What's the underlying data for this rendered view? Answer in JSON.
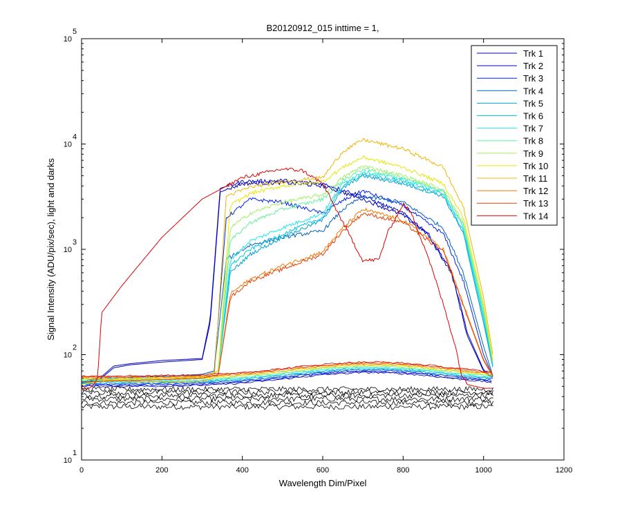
{
  "chart_data": {
    "type": "line",
    "title": "B20120912_015 inttime = 1,",
    "xlabel": "Wavelength Dim/Pixel",
    "ylabel": "Signal Intensity (ADU/pix/sec), light and darks",
    "xlim": [
      0,
      1200
    ],
    "ylim": [
      10,
      100000
    ],
    "yscale": "log",
    "x_ticks": [
      "0",
      "200",
      "400",
      "600",
      "800",
      "1000",
      "1200"
    ],
    "y_ticks": [
      {
        "base": "10",
        "exp": "1"
      },
      {
        "base": "10",
        "exp": "2"
      },
      {
        "base": "10",
        "exp": "3"
      },
      {
        "base": "10",
        "exp": "4"
      },
      {
        "base": "10",
        "exp": "5"
      }
    ],
    "grid": false,
    "legend_position": "top-right",
    "dark_color": "#000000",
    "series": [
      {
        "name": "Trk 1",
        "color": "#0000AA",
        "points": [
          [
            0,
            55
          ],
          [
            50,
            60
          ],
          [
            80,
            75
          ],
          [
            120,
            80
          ],
          [
            200,
            85
          ],
          [
            300,
            90
          ],
          [
            320,
            200
          ],
          [
            345,
            3500
          ],
          [
            400,
            4200
          ],
          [
            500,
            4300
          ],
          [
            600,
            4000
          ],
          [
            700,
            3000
          ],
          [
            800,
            2100
          ],
          [
            860,
            1400
          ],
          [
            920,
            600
          ],
          [
            960,
            150
          ],
          [
            1000,
            70
          ],
          [
            1020,
            60
          ]
        ],
        "dark_level": 50
      },
      {
        "name": "Trk 2",
        "color": "#0000CD",
        "points": [
          [
            0,
            55
          ],
          [
            50,
            62
          ],
          [
            80,
            78
          ],
          [
            120,
            82
          ],
          [
            200,
            88
          ],
          [
            300,
            92
          ],
          [
            320,
            220
          ],
          [
            345,
            3800
          ],
          [
            400,
            4400
          ],
          [
            500,
            4500
          ],
          [
            600,
            4200
          ],
          [
            700,
            3200
          ],
          [
            800,
            2200
          ],
          [
            860,
            1450
          ],
          [
            920,
            620
          ],
          [
            960,
            160
          ],
          [
            1000,
            72
          ],
          [
            1020,
            62
          ]
        ],
        "dark_level": 51
      },
      {
        "name": "Trk 3",
        "color": "#0020F0",
        "points": [
          [
            0,
            54
          ],
          [
            60,
            60
          ],
          [
            200,
            62
          ],
          [
            300,
            65
          ],
          [
            330,
            70
          ],
          [
            360,
            2000
          ],
          [
            420,
            3000
          ],
          [
            500,
            2800
          ],
          [
            600,
            2200
          ],
          [
            650,
            2900
          ],
          [
            700,
            3600
          ],
          [
            800,
            2600
          ],
          [
            900,
            1400
          ],
          [
            950,
            500
          ],
          [
            1000,
            100
          ],
          [
            1025,
            60
          ]
        ],
        "dark_level": 52
      },
      {
        "name": "Trk 4",
        "color": "#0060C0",
        "points": [
          [
            0,
            54
          ],
          [
            60,
            60
          ],
          [
            200,
            62
          ],
          [
            300,
            65
          ],
          [
            330,
            70
          ],
          [
            360,
            800
          ],
          [
            420,
            1100
          ],
          [
            500,
            1300
          ],
          [
            600,
            1500
          ],
          [
            650,
            2400
          ],
          [
            700,
            3200
          ],
          [
            800,
            2800
          ],
          [
            900,
            1600
          ],
          [
            950,
            600
          ],
          [
            1000,
            120
          ],
          [
            1025,
            60
          ]
        ],
        "dark_level": 53
      },
      {
        "name": "Trk 5",
        "color": "#00A0D0",
        "points": [
          [
            0,
            53
          ],
          [
            60,
            58
          ],
          [
            200,
            60
          ],
          [
            300,
            62
          ],
          [
            340,
            70
          ],
          [
            370,
            600
          ],
          [
            420,
            900
          ],
          [
            500,
            1300
          ],
          [
            600,
            1900
          ],
          [
            650,
            3800
          ],
          [
            700,
            5000
          ],
          [
            800,
            4200
          ],
          [
            900,
            3200
          ],
          [
            950,
            1400
          ],
          [
            1000,
            200
          ],
          [
            1025,
            70
          ]
        ],
        "dark_level": 54
      },
      {
        "name": "Trk 6",
        "color": "#00C8E6",
        "points": [
          [
            0,
            53
          ],
          [
            60,
            58
          ],
          [
            200,
            60
          ],
          [
            300,
            62
          ],
          [
            340,
            70
          ],
          [
            370,
            700
          ],
          [
            420,
            1000
          ],
          [
            500,
            1400
          ],
          [
            600,
            2000
          ],
          [
            650,
            4000
          ],
          [
            700,
            5200
          ],
          [
            800,
            4400
          ],
          [
            900,
            3300
          ],
          [
            950,
            1500
          ],
          [
            1000,
            220
          ],
          [
            1025,
            72
          ]
        ],
        "dark_level": 55
      },
      {
        "name": "Trk 7",
        "color": "#20E6E6",
        "points": [
          [
            0,
            52
          ],
          [
            60,
            57
          ],
          [
            200,
            60
          ],
          [
            300,
            62
          ],
          [
            340,
            70
          ],
          [
            370,
            800
          ],
          [
            420,
            1200
          ],
          [
            500,
            1600
          ],
          [
            600,
            2200
          ],
          [
            650,
            4200
          ],
          [
            700,
            5500
          ],
          [
            800,
            4600
          ],
          [
            900,
            3500
          ],
          [
            950,
            1600
          ],
          [
            1000,
            240
          ],
          [
            1025,
            74
          ]
        ],
        "dark_level": 56
      },
      {
        "name": "Trk 8",
        "color": "#60F0A0",
        "points": [
          [
            0,
            52
          ],
          [
            60,
            57
          ],
          [
            200,
            60
          ],
          [
            300,
            62
          ],
          [
            340,
            70
          ],
          [
            370,
            1200
          ],
          [
            420,
            1800
          ],
          [
            500,
            2400
          ],
          [
            600,
            3000
          ],
          [
            650,
            4500
          ],
          [
            700,
            5800
          ],
          [
            800,
            4800
          ],
          [
            900,
            3600
          ],
          [
            950,
            1700
          ],
          [
            1000,
            260
          ],
          [
            1025,
            76
          ]
        ],
        "dark_level": 57
      },
      {
        "name": "Trk 9",
        "color": "#A0F060",
        "points": [
          [
            0,
            52
          ],
          [
            60,
            57
          ],
          [
            200,
            60
          ],
          [
            300,
            62
          ],
          [
            340,
            70
          ],
          [
            370,
            1600
          ],
          [
            420,
            2200
          ],
          [
            500,
            2800
          ],
          [
            600,
            3300
          ],
          [
            650,
            4800
          ],
          [
            700,
            6200
          ],
          [
            800,
            5000
          ],
          [
            900,
            3700
          ],
          [
            950,
            1800
          ],
          [
            1000,
            280
          ],
          [
            1025,
            78
          ]
        ],
        "dark_level": 58
      },
      {
        "name": "Trk 10",
        "color": "#E6E600",
        "points": [
          [
            0,
            52
          ],
          [
            60,
            57
          ],
          [
            200,
            60
          ],
          [
            300,
            62
          ],
          [
            340,
            70
          ],
          [
            370,
            2600
          ],
          [
            420,
            3400
          ],
          [
            500,
            4000
          ],
          [
            600,
            4400
          ],
          [
            650,
            6000
          ],
          [
            700,
            7500
          ],
          [
            800,
            6000
          ],
          [
            900,
            4200
          ],
          [
            950,
            2000
          ],
          [
            1000,
            300
          ],
          [
            1025,
            80
          ]
        ],
        "dark_level": 59
      },
      {
        "name": "Trk 11",
        "color": "#F0B400",
        "points": [
          [
            0,
            60
          ],
          [
            50,
            58
          ],
          [
            100,
            56
          ],
          [
            200,
            55
          ],
          [
            300,
            56
          ],
          [
            330,
            60
          ],
          [
            360,
            3200
          ],
          [
            420,
            3900
          ],
          [
            500,
            4400
          ],
          [
            600,
            4800
          ],
          [
            650,
            8500
          ],
          [
            700,
            11000
          ],
          [
            800,
            9000
          ],
          [
            900,
            6000
          ],
          [
            950,
            2500
          ],
          [
            1000,
            350
          ],
          [
            1025,
            90
          ]
        ],
        "dark_level": 60
      },
      {
        "name": "Trk 12",
        "color": "#F07800",
        "points": [
          [
            0,
            55
          ],
          [
            60,
            56
          ],
          [
            200,
            58
          ],
          [
            300,
            60
          ],
          [
            340,
            64
          ],
          [
            370,
            380
          ],
          [
            420,
            520
          ],
          [
            500,
            700
          ],
          [
            600,
            950
          ],
          [
            650,
            1600
          ],
          [
            700,
            2400
          ],
          [
            800,
            1900
          ],
          [
            900,
            1000
          ],
          [
            950,
            300
          ],
          [
            1000,
            90
          ],
          [
            1025,
            62
          ]
        ],
        "dark_level": 61
      },
      {
        "name": "Trk 13",
        "color": "#E63C00",
        "points": [
          [
            0,
            55
          ],
          [
            60,
            56
          ],
          [
            200,
            58
          ],
          [
            300,
            60
          ],
          [
            340,
            64
          ],
          [
            370,
            350
          ],
          [
            420,
            500
          ],
          [
            500,
            650
          ],
          [
            600,
            900
          ],
          [
            650,
            1500
          ],
          [
            700,
            2200
          ],
          [
            800,
            1800
          ],
          [
            900,
            950
          ],
          [
            950,
            290
          ],
          [
            1000,
            88
          ],
          [
            1025,
            60
          ]
        ],
        "dark_level": 62
      },
      {
        "name": "Trk 14",
        "color": "#DC0000",
        "points": [
          [
            0,
            48
          ],
          [
            20,
            48
          ],
          [
            30,
            52
          ],
          [
            40,
            60
          ],
          [
            50,
            250
          ],
          [
            100,
            450
          ],
          [
            200,
            1300
          ],
          [
            300,
            3000
          ],
          [
            400,
            4800
          ],
          [
            500,
            5800
          ],
          [
            550,
            5600
          ],
          [
            600,
            4200
          ],
          [
            650,
            1800
          ],
          [
            700,
            780
          ],
          [
            740,
            800
          ],
          [
            760,
            1400
          ],
          [
            800,
            2700
          ],
          [
            820,
            2200
          ],
          [
            860,
            900
          ],
          [
            900,
            300
          ],
          [
            930,
            120
          ],
          [
            945,
            65
          ],
          [
            960,
            52
          ],
          [
            1000,
            48
          ],
          [
            1025,
            48
          ]
        ],
        "dark_level": 63
      }
    ]
  }
}
